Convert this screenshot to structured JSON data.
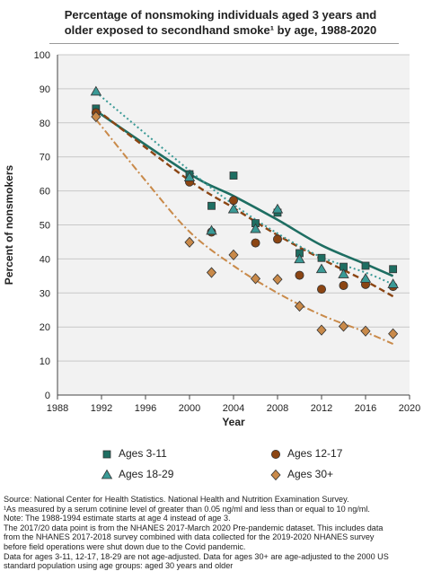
{
  "chart_data": {
    "type": "scatter",
    "title_lines": [
      "Percentage of nonsmoking individuals aged 3 years and",
      "older exposed to secondhand smoke¹ by age, 1988-2020"
    ],
    "xlabel": "Year",
    "ylabel": "Percent of nonsmokers",
    "xlim": [
      1988,
      2020
    ],
    "ylim": [
      0,
      100
    ],
    "x_ticks": [
      1988,
      1992,
      1996,
      2000,
      2004,
      2008,
      2012,
      2016,
      2020
    ],
    "y_ticks": [
      0,
      10,
      20,
      30,
      40,
      50,
      60,
      70,
      80,
      90,
      100
    ],
    "grid": true,
    "legend_position": "bottom",
    "series": [
      {
        "name": "Ages 3-11",
        "marker": "square",
        "color": "#1e6e62",
        "trend_style": "solid",
        "x": [
          1991.5,
          2000,
          2002,
          2004,
          2006,
          2008,
          2010,
          2012,
          2014,
          2016,
          2018.5
        ],
        "y": [
          84.2,
          64.9,
          55.6,
          64.5,
          50.5,
          53.6,
          41.7,
          40.3,
          37.7,
          38.0,
          37.0
        ],
        "trend": [
          [
            1991.5,
            83.5
          ],
          [
            2000,
            65
          ],
          [
            2004,
            58.5
          ],
          [
            2008,
            51.5
          ],
          [
            2012,
            44
          ],
          [
            2016,
            38.5
          ],
          [
            2018.5,
            35
          ]
        ]
      },
      {
        "name": "Ages 12-17",
        "marker": "circle",
        "color": "#8b4513",
        "trend_style": "dashed",
        "x": [
          1991.5,
          2000,
          2002,
          2004,
          2006,
          2008,
          2010,
          2012,
          2014,
          2016,
          2018.5
        ],
        "y": [
          83.0,
          62.6,
          47.9,
          57.2,
          44.7,
          45.8,
          35.2,
          31.1,
          32.2,
          32.5,
          31.9
        ],
        "trend": [
          [
            1991.5,
            84
          ],
          [
            2000,
            63
          ],
          [
            2004,
            55
          ],
          [
            2008,
            47
          ],
          [
            2012,
            40
          ],
          [
            2016,
            33.5
          ],
          [
            2018.5,
            29
          ]
        ]
      },
      {
        "name": "Ages 18-29",
        "marker": "triangle",
        "color": "#3a9a96",
        "trend_style": "dotted",
        "x": [
          1991.5,
          2000,
          2002,
          2004,
          2006,
          2008,
          2010,
          2012,
          2014,
          2016,
          2018.5
        ],
        "y": [
          89.2,
          64.0,
          48.3,
          54.6,
          48.8,
          54.6,
          39.9,
          37.0,
          35.5,
          34.2,
          32.6
        ],
        "trend": [
          [
            1991.5,
            89
          ],
          [
            2000,
            66
          ],
          [
            2004,
            56
          ],
          [
            2008,
            47.5
          ],
          [
            2012,
            40.5
          ],
          [
            2016,
            36
          ],
          [
            2018.5,
            32.5
          ]
        ]
      },
      {
        "name": "Ages 30+",
        "marker": "diamond",
        "color": "#c98a4a",
        "trend_style": "dashdot",
        "x": [
          1991.5,
          2000,
          2002,
          2004,
          2006,
          2008,
          2010,
          2012,
          2014,
          2016,
          2018.5
        ],
        "y": [
          81.8,
          44.9,
          36.0,
          41.2,
          34.2,
          34.0,
          26.1,
          19.1,
          20.2,
          18.8,
          18.0
        ],
        "trend": [
          [
            1991.5,
            81
          ],
          [
            1996,
            63
          ],
          [
            2000,
            48
          ],
          [
            2004,
            38
          ],
          [
            2008,
            30
          ],
          [
            2012,
            23.5
          ],
          [
            2016,
            18.5
          ],
          [
            2018.5,
            15
          ]
        ]
      }
    ]
  },
  "notes": [
    "Source: National Center for Health Statistics. National Health and Nutrition Examination Survey.",
    "¹As measured by a serum cotinine level of greater than 0.05 ng/ml and less than or equal to 10 ng/ml.",
    "Note: The 1988-1994 estimate starts at age 4 instead of age 3.",
    "The 2017/20 data point is from the NHANES 2017-March 2020 Pre-pandemic dataset. This includes data",
    "from the NHANES 2017-2018 survey combined with data collected for the 2019-2020 NHANES survey",
    "before field operations were shut down due to the Covid pandemic.",
    "Data for ages 3-11, 12-17, 18-29 are not age-adjusted. Data for ages 30+ are age-adjusted to the 2000 US",
    "standard population using age groups:  aged 30 years and older"
  ]
}
